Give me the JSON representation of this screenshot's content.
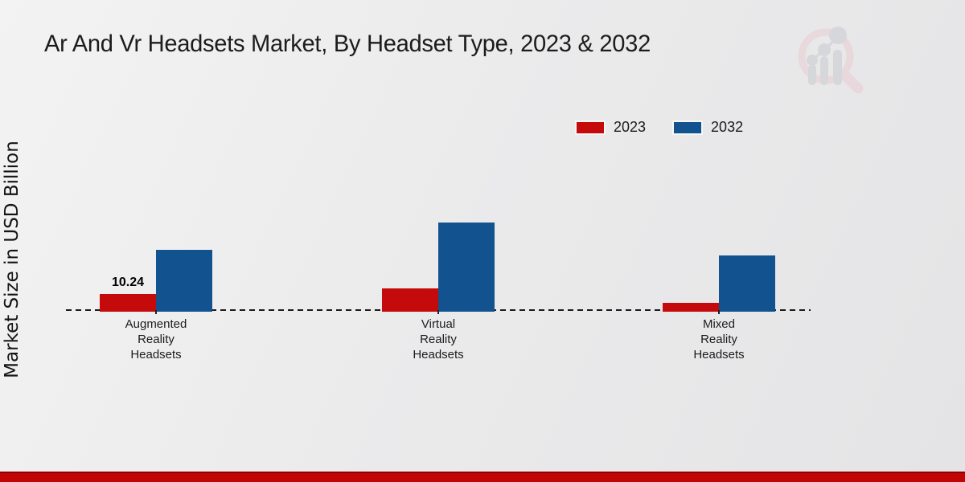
{
  "page": {
    "title": "Ar And Vr Headsets Market, By Headset Type, 2023 & 2032",
    "y_axis_label": "Market Size in USD Billion"
  },
  "colors": {
    "series_2023": "#c40a0a",
    "series_2032": "#12528f",
    "footer_strip": "#c00505",
    "footer_strip_dark": "#8f0000",
    "text": "#1c1c1c",
    "baseline": "#1b1b1b"
  },
  "watermark": {
    "name": "magnifier-growth-chart-logo",
    "glass_color": "#e9cdd2",
    "bars_color": "#c7cad1"
  },
  "chart_data": {
    "type": "bar",
    "title": "Ar And Vr Headsets Market, By Headset Type, 2023 & 2032",
    "xlabel": "",
    "ylabel": "Market Size in USD Billion",
    "categories": [
      "Augmented\nReality\nHeadsets",
      "Virtual\nReality\nHeadsets",
      "Mixed\nReality\nHeadsets"
    ],
    "series": [
      {
        "name": "2023",
        "color": "#c40a0a",
        "values": [
          10.24,
          13.3,
          5.0
        ]
      },
      {
        "name": "2032",
        "color": "#12528f",
        "values": [
          35.4,
          51.0,
          32.1
        ]
      }
    ],
    "bar_labels": [
      {
        "series": "2023",
        "category_index": 0,
        "text": "10.24"
      }
    ],
    "ylim": [
      0,
      60
    ],
    "grid": false,
    "y_axis_ticks_visible": false,
    "baseline_style": "dashed",
    "legend_position": "top-right"
  }
}
